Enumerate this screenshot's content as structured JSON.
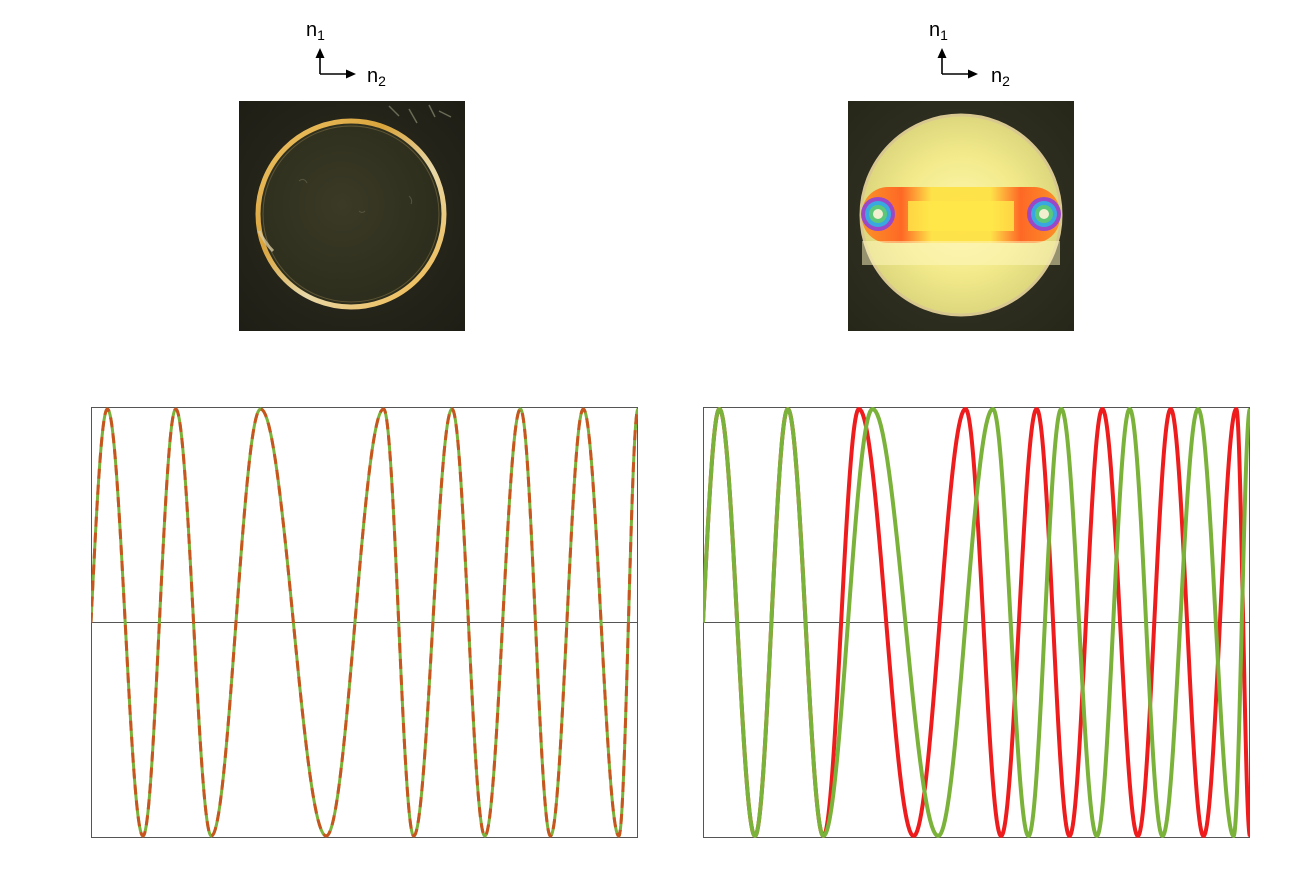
{
  "panels": [
    {
      "id": "left",
      "axis_labels": {
        "vertical": "n",
        "vertical_subscript": "1",
        "horizontal": "n",
        "horizontal_subscript": "2"
      },
      "photo": {
        "description_free": true,
        "fringes_visible": false
      }
    },
    {
      "id": "right",
      "axis_labels": {
        "vertical": "n",
        "vertical_subscript": "1",
        "horizontal": "n",
        "horizontal_subscript": "2"
      },
      "photo": {
        "description_free": true,
        "fringes_visible": true
      }
    }
  ],
  "colors": {
    "wave_red": "#ee1c1c",
    "wave_green": "#7ab23a",
    "wave_orange_dashed": "#c8551e",
    "frame": "#555555"
  },
  "chart_data": [
    {
      "type": "line",
      "title": "",
      "xlabel": "",
      "ylabel": "",
      "xlim": [
        0,
        1
      ],
      "ylim": [
        -1,
        1
      ],
      "grid": false,
      "legend": "none",
      "zero_line": true,
      "series": [
        {
          "style": "solid",
          "color": "#7ab23a",
          "phase_offset_cycles": 0.0,
          "cycles_per_segment": [
            0,
            2.0,
            1.0,
            1.0,
            1.5,
            1.5,
            1.5,
            1.5
          ]
        },
        {
          "style": "dashed",
          "color": "#c8551e",
          "phase_offset_cycles": 0.0,
          "cycles_per_segment": [
            0,
            2.0,
            1.0,
            1.0,
            1.5,
            1.5,
            1.5,
            1.5
          ]
        }
      ],
      "peaks_x": [
        0.03,
        0.155,
        0.31,
        0.535,
        0.66,
        0.785,
        0.9
      ],
      "troughs_x": [
        0.095,
        0.22,
        0.43,
        0.59,
        0.72,
        0.84,
        0.965
      ]
    },
    {
      "type": "line",
      "title": "",
      "xlabel": "",
      "ylabel": "",
      "xlim": [
        0,
        1
      ],
      "ylim": [
        -1,
        1
      ],
      "grid": false,
      "legend": "none",
      "zero_line": true,
      "series": [
        {
          "style": "solid",
          "color": "#ee1c1c",
          "peaks_x": [
            0.03,
            0.155,
            0.285,
            0.48,
            0.61,
            0.73,
            0.855,
            0.975
          ],
          "troughs_x": [
            0.095,
            0.22,
            0.385,
            0.545,
            0.67,
            0.795,
            0.915
          ]
        },
        {
          "style": "solid",
          "color": "#7ab23a",
          "peaks_x": [
            0.03,
            0.155,
            0.31,
            0.53,
            0.655,
            0.78,
            0.905
          ],
          "troughs_x": [
            0.095,
            0.22,
            0.43,
            0.595,
            0.72,
            0.84,
            0.97
          ]
        }
      ]
    }
  ]
}
